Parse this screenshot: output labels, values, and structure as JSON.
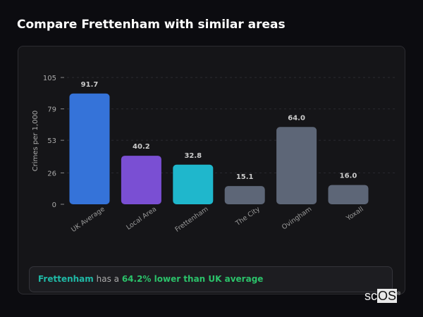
{
  "page_title": "Compare Frettenham with similar areas",
  "chart_data": {
    "type": "bar",
    "categories": [
      "UK Average",
      "Local Area",
      "Frettenham",
      "The City",
      "Ovingham",
      "Yoxall"
    ],
    "values": [
      91.7,
      40.2,
      32.8,
      15.1,
      64.0,
      16.0
    ],
    "value_labels": [
      "91.7",
      "40.2",
      "32.8",
      "15.1",
      "64.0",
      "16.0"
    ],
    "colors": [
      "#3573d9",
      "#7a4fd3",
      "#1fb7cc",
      "#5d6677",
      "#5d6677",
      "#5d6677"
    ],
    "ylabel": "Crimes per 1,000",
    "yticks": [
      0,
      26,
      53,
      79,
      105
    ],
    "ylim": [
      0,
      105
    ],
    "grid": true
  },
  "callout": {
    "area": "Frettenham",
    "middle": " has a ",
    "comparison": "64.2% lower than UK average"
  },
  "logo": {
    "text": "scOS"
  }
}
